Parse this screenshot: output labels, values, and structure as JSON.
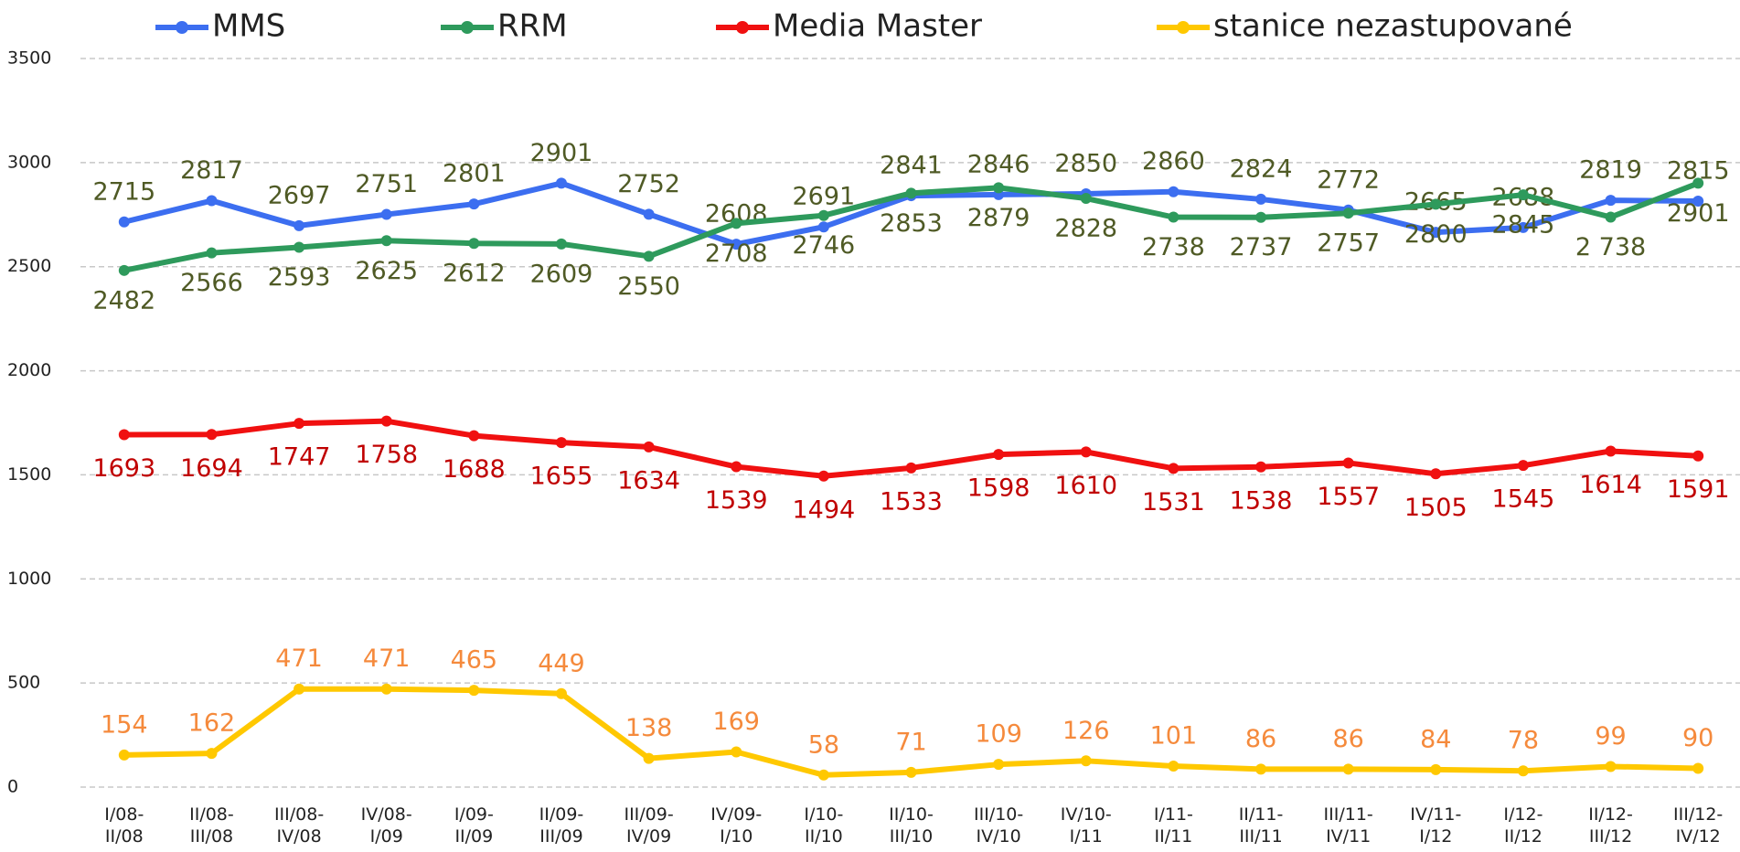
{
  "chart_data": {
    "type": "line",
    "categories": [
      "I/08-II/08",
      "II/08-III/08",
      "III/08-IV/08",
      "IV/08-I/09",
      "I/09-II/09",
      "II/09-III/09",
      "III/09-IV/09",
      "IV/09-I/10",
      "I/10-II/10",
      "II/10-III/10",
      "III/10-IV/10",
      "IV/10-I/11",
      "I/11-II/11",
      "II/11-III/11",
      "III/11-IV/11",
      "IV/11-I/12",
      "I/12-II/12",
      "II/12-III/12",
      "III/12-IV/12"
    ],
    "series": [
      {
        "name": "MMS",
        "color": "#3c6ef0",
        "label_color": "#4f5a25",
        "values": [
          2715,
          2817,
          2697,
          2751,
          2801,
          2901,
          2752,
          2608,
          2691,
          2841,
          2846,
          2850,
          2860,
          2824,
          2772,
          2665,
          2688,
          2819,
          2815
        ]
      },
      {
        "name": "RRM",
        "color": "#2e9a5c",
        "label_color": "#4f5a25",
        "values": [
          2482,
          2566,
          2593,
          2625,
          2612,
          2609,
          2550,
          2708,
          2746,
          2853,
          2879,
          2828,
          2738,
          2737,
          2757,
          2800,
          2845,
          2738,
          2901
        ],
        "value_labels": [
          "2482",
          "2566",
          "2593",
          "2625",
          "2612",
          "2609",
          "2550",
          "2708",
          "2746",
          "2853",
          "2879",
          "2828",
          "2738",
          "2737",
          "2757",
          "2800",
          "2845",
          "2 738",
          "2901"
        ]
      },
      {
        "name": "Media Master",
        "color": "#f01010",
        "label_color": "#c00000",
        "values": [
          1693,
          1694,
          1747,
          1758,
          1688,
          1655,
          1634,
          1539,
          1494,
          1533,
          1598,
          1610,
          1531,
          1538,
          1557,
          1505,
          1545,
          1614,
          1591
        ]
      },
      {
        "name": "stanice nezastupované",
        "color": "#ffc800",
        "label_color": "#f58a3c",
        "values": [
          154,
          162,
          471,
          471,
          465,
          449,
          138,
          169,
          58,
          71,
          109,
          126,
          101,
          86,
          86,
          84,
          78,
          99,
          90
        ]
      }
    ],
    "ylim": [
      0,
      3500
    ],
    "yticks": [
      0,
      500,
      1000,
      1500,
      2000,
      2500,
      3000,
      3500
    ],
    "grid": true
  }
}
